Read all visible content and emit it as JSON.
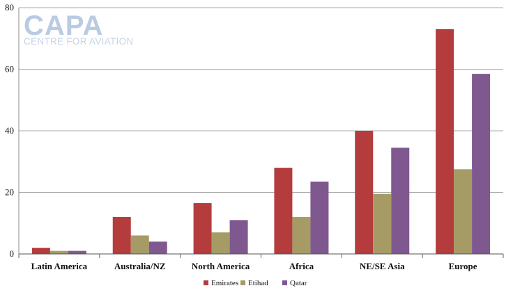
{
  "logo": {
    "main": "CAPA",
    "sub": "CENTRE FOR AVIATION"
  },
  "chart_data": {
    "type": "bar",
    "categories": [
      "Latin America",
      "Australia/NZ",
      "North America",
      "Africa",
      "NE/SE Asia",
      "Europe"
    ],
    "series": [
      {
        "name": "Emirates",
        "color": "#b43c3c",
        "values": [
          2,
          12,
          16.5,
          28,
          40,
          73
        ]
      },
      {
        "name": "Etihad",
        "color": "#a69b64",
        "values": [
          1,
          6,
          7,
          12,
          19.5,
          27.5
        ]
      },
      {
        "name": "Qatar",
        "color": "#7f5890",
        "values": [
          1,
          4,
          11,
          23.5,
          34.5,
          58.5
        ]
      }
    ],
    "ylim": [
      0,
      80
    ],
    "yticks": [
      0,
      20,
      40,
      60,
      80
    ],
    "grid": true,
    "legend_position": "bottom-center"
  }
}
